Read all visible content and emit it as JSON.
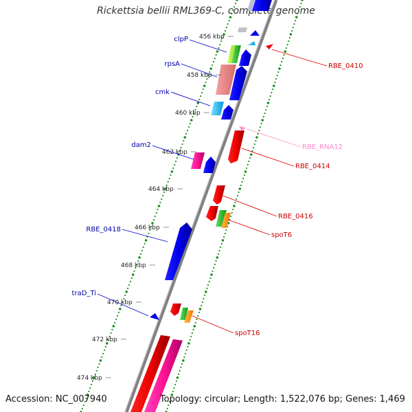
{
  "title": "Rickettsia bellii RML369-C, complete genome",
  "footer": {
    "accession": "Accession: NC_007940",
    "topology": "Topology: circular; Length: 1,522,076 bp; Genes: 1,469"
  },
  "colors": {
    "backbone": "#808080",
    "tick": "#1d8f1d",
    "forward_gene": "#0000ee",
    "reverse_gene": "#ee0000",
    "rna": "#ff66cc",
    "label_left": "#0000aa",
    "label_right": "#cc0000",
    "label_rna": "#ff88cc"
  },
  "ruler": [
    {
      "label": "456 kbp"
    },
    {
      "label": "458 kbp"
    },
    {
      "label": "460 kbp"
    },
    {
      "label": "462 kbp"
    },
    {
      "label": "464 kbp"
    },
    {
      "label": "466 kbp"
    },
    {
      "label": "468 kbp"
    },
    {
      "label": "470 kbp"
    },
    {
      "label": "472 kbp"
    },
    {
      "label": "474 kbp"
    }
  ],
  "labels_left": [
    {
      "text": "clpP"
    },
    {
      "text": "rpsA"
    },
    {
      "text": "cmk"
    },
    {
      "text": "dam2"
    },
    {
      "text": "RBE_0418"
    },
    {
      "text": "traD_Ti"
    }
  ],
  "labels_right": [
    {
      "text": "RBE_0410"
    },
    {
      "text": "RBE_RNA12"
    },
    {
      "text": "RBE_0414"
    },
    {
      "text": "RBE_0416"
    },
    {
      "text": "spoT6"
    },
    {
      "text": "spoT16"
    }
  ]
}
